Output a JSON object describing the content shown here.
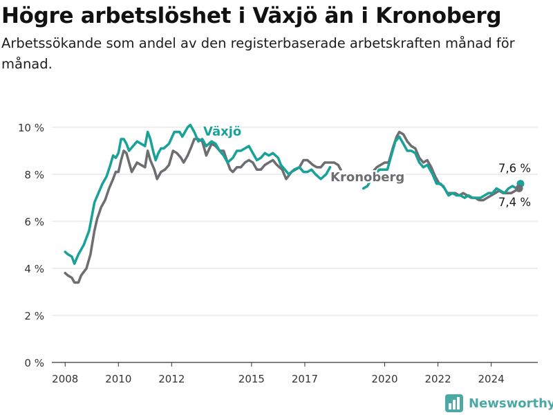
{
  "title": "Högre arbetslöshet i Växjö än i Kronoberg",
  "subtitle": "Arbetssökande som andel av den registerbaserade arbetskraften månad för månad.",
  "brand": {
    "name": "Newsworthy",
    "logo_icon": "bar-chart-logo-icon"
  },
  "colors": {
    "vaxjo": "#1aa198",
    "kronoberg": "#6d6e71",
    "grid": "#dcdcdc",
    "axis": "#333333"
  },
  "chart_data": {
    "type": "line",
    "xlim": [
      2007.5,
      2025.75
    ],
    "ylim": [
      0,
      10
    ],
    "x_ticks": [
      2008,
      2010,
      2012,
      2015,
      2017,
      2020,
      2022,
      2024
    ],
    "y_ticks": [
      0,
      2,
      4,
      6,
      8,
      10
    ],
    "y_tick_labels": [
      "0 %",
      "2 %",
      "4 %",
      "6 %",
      "8 %",
      "10 %"
    ],
    "grid": true,
    "legend": "direct labels",
    "series": [
      {
        "name": "Växjö",
        "key": "vaxjo",
        "end_label": "7,6 %",
        "points": [
          [
            2008.0,
            4.7
          ],
          [
            2008.1,
            4.6
          ],
          [
            2008.25,
            4.5
          ],
          [
            2008.35,
            4.2
          ],
          [
            2008.5,
            4.6
          ],
          [
            2008.7,
            5.0
          ],
          [
            2008.9,
            5.6
          ],
          [
            2009.0,
            6.2
          ],
          [
            2009.1,
            6.8
          ],
          [
            2009.25,
            7.2
          ],
          [
            2009.4,
            7.6
          ],
          [
            2009.55,
            7.9
          ],
          [
            2009.7,
            8.4
          ],
          [
            2009.8,
            8.8
          ],
          [
            2009.9,
            8.7
          ],
          [
            2010.0,
            8.9
          ],
          [
            2010.1,
            9.5
          ],
          [
            2010.2,
            9.5
          ],
          [
            2010.3,
            9.3
          ],
          [
            2010.4,
            9.0
          ],
          [
            2010.55,
            9.2
          ],
          [
            2010.7,
            9.4
          ],
          [
            2010.85,
            9.3
          ],
          [
            2011.0,
            9.2
          ],
          [
            2011.1,
            9.8
          ],
          [
            2011.2,
            9.5
          ],
          [
            2011.3,
            9.0
          ],
          [
            2011.4,
            8.6
          ],
          [
            2011.5,
            8.9
          ],
          [
            2011.6,
            9.1
          ],
          [
            2011.7,
            9.1
          ],
          [
            2011.9,
            9.3
          ],
          [
            2012.1,
            9.8
          ],
          [
            2012.3,
            9.8
          ],
          [
            2012.4,
            9.6
          ],
          [
            2012.5,
            9.8
          ],
          [
            2012.6,
            10.0
          ],
          [
            2012.7,
            10.1
          ],
          [
            2012.85,
            9.8
          ],
          [
            2013.0,
            9.4
          ],
          [
            2013.15,
            9.5
          ],
          [
            2013.3,
            9.2
          ],
          [
            2013.5,
            9.4
          ],
          [
            2013.65,
            9.3
          ],
          [
            2013.8,
            9.0
          ],
          [
            2013.95,
            8.8
          ],
          [
            2014.1,
            8.5
          ],
          [
            2014.3,
            8.7
          ],
          [
            2014.45,
            9.0
          ],
          [
            2014.6,
            9.0
          ],
          [
            2014.75,
            9.1
          ],
          [
            2014.9,
            9.2
          ],
          [
            2015.05,
            8.9
          ],
          [
            2015.2,
            8.6
          ],
          [
            2015.35,
            8.7
          ],
          [
            2015.5,
            8.9
          ],
          [
            2015.65,
            8.8
          ],
          [
            2015.8,
            8.9
          ],
          [
            2016.0,
            8.7
          ],
          [
            2016.1,
            8.4
          ],
          [
            2016.25,
            8.2
          ],
          [
            2016.4,
            8.0
          ],
          [
            2016.6,
            8.2
          ],
          [
            2016.8,
            8.3
          ],
          [
            2016.95,
            8.1
          ],
          [
            2017.1,
            8.1
          ],
          [
            2017.25,
            8.2
          ],
          [
            2017.4,
            8.0
          ],
          [
            2017.6,
            7.8
          ],
          [
            2017.8,
            8.0
          ],
          [
            2017.95,
            8.3
          ]
        ],
        "points_b": [
          [
            2019.2,
            7.4
          ],
          [
            2019.35,
            7.5
          ],
          [
            2019.5,
            7.8
          ],
          [
            2019.65,
            8.0
          ],
          [
            2019.8,
            8.2
          ],
          [
            2019.95,
            8.2
          ],
          [
            2020.1,
            8.2
          ],
          [
            2020.25,
            8.8
          ],
          [
            2020.4,
            9.4
          ],
          [
            2020.55,
            9.6
          ],
          [
            2020.7,
            9.3
          ],
          [
            2020.85,
            9.0
          ],
          [
            2021.0,
            9.0
          ],
          [
            2021.15,
            8.9
          ],
          [
            2021.3,
            8.5
          ],
          [
            2021.45,
            8.3
          ],
          [
            2021.6,
            8.4
          ],
          [
            2021.8,
            8.0
          ],
          [
            2021.95,
            7.6
          ],
          [
            2022.1,
            7.6
          ],
          [
            2022.25,
            7.4
          ],
          [
            2022.4,
            7.1
          ],
          [
            2022.55,
            7.2
          ],
          [
            2022.7,
            7.1
          ],
          [
            2022.85,
            7.1
          ],
          [
            2023.0,
            7.0
          ],
          [
            2023.15,
            7.1
          ],
          [
            2023.3,
            7.0
          ],
          [
            2023.45,
            7.0
          ],
          [
            2023.6,
            7.0
          ],
          [
            2023.75,
            7.1
          ],
          [
            2023.9,
            7.2
          ],
          [
            2024.05,
            7.2
          ],
          [
            2024.2,
            7.4
          ],
          [
            2024.35,
            7.3
          ],
          [
            2024.5,
            7.2
          ],
          [
            2024.65,
            7.4
          ],
          [
            2024.8,
            7.5
          ],
          [
            2024.95,
            7.4
          ],
          [
            2025.1,
            7.6
          ]
        ]
      },
      {
        "name": "Kronoberg",
        "key": "kronoberg",
        "end_label": "7,4 %",
        "points": [
          [
            2008.0,
            3.8
          ],
          [
            2008.1,
            3.7
          ],
          [
            2008.25,
            3.6
          ],
          [
            2008.35,
            3.4
          ],
          [
            2008.5,
            3.4
          ],
          [
            2008.6,
            3.7
          ],
          [
            2008.8,
            4.0
          ],
          [
            2008.95,
            4.6
          ],
          [
            2009.1,
            5.6
          ],
          [
            2009.2,
            6.1
          ],
          [
            2009.35,
            6.6
          ],
          [
            2009.5,
            6.9
          ],
          [
            2009.65,
            7.4
          ],
          [
            2009.8,
            7.8
          ],
          [
            2009.9,
            8.1
          ],
          [
            2010.0,
            8.1
          ],
          [
            2010.1,
            8.6
          ],
          [
            2010.2,
            9.0
          ],
          [
            2010.3,
            8.9
          ],
          [
            2010.4,
            8.5
          ],
          [
            2010.5,
            8.1
          ],
          [
            2010.6,
            8.3
          ],
          [
            2010.7,
            8.5
          ],
          [
            2010.85,
            8.4
          ],
          [
            2011.0,
            8.3
          ],
          [
            2011.1,
            9.0
          ],
          [
            2011.2,
            8.6
          ],
          [
            2011.35,
            8.2
          ],
          [
            2011.45,
            7.8
          ],
          [
            2011.6,
            8.1
          ],
          [
            2011.75,
            8.2
          ],
          [
            2011.9,
            8.4
          ],
          [
            2012.05,
            9.0
          ],
          [
            2012.2,
            8.9
          ],
          [
            2012.35,
            8.7
          ],
          [
            2012.45,
            8.5
          ],
          [
            2012.6,
            8.8
          ],
          [
            2012.75,
            9.2
          ],
          [
            2012.85,
            9.5
          ],
          [
            2013.0,
            9.5
          ],
          [
            2013.15,
            9.4
          ],
          [
            2013.3,
            8.8
          ],
          [
            2013.5,
            9.3
          ],
          [
            2013.65,
            9.2
          ],
          [
            2013.8,
            9.0
          ],
          [
            2013.95,
            9.0
          ],
          [
            2014.1,
            8.5
          ],
          [
            2014.2,
            8.2
          ],
          [
            2014.3,
            8.1
          ],
          [
            2014.45,
            8.3
          ],
          [
            2014.6,
            8.3
          ],
          [
            2014.75,
            8.5
          ],
          [
            2014.9,
            8.6
          ],
          [
            2015.05,
            8.5
          ],
          [
            2015.2,
            8.2
          ],
          [
            2015.35,
            8.2
          ],
          [
            2015.5,
            8.4
          ],
          [
            2015.65,
            8.5
          ],
          [
            2015.8,
            8.6
          ],
          [
            2015.95,
            8.4
          ],
          [
            2016.15,
            8.2
          ],
          [
            2016.3,
            7.8
          ],
          [
            2016.5,
            8.1
          ],
          [
            2016.65,
            8.2
          ],
          [
            2016.8,
            8.3
          ],
          [
            2016.95,
            8.6
          ],
          [
            2017.1,
            8.6
          ],
          [
            2017.3,
            8.4
          ],
          [
            2017.45,
            8.3
          ],
          [
            2017.6,
            8.3
          ],
          [
            2017.75,
            8.5
          ],
          [
            2017.9,
            8.5
          ],
          [
            2018.1,
            8.5
          ],
          [
            2018.25,
            8.4
          ],
          [
            2018.35,
            8.2
          ]
        ],
        "points_b": [
          [
            2019.55,
            8.1
          ],
          [
            2019.7,
            8.3
          ],
          [
            2019.85,
            8.4
          ],
          [
            2020.0,
            8.5
          ],
          [
            2020.15,
            8.5
          ],
          [
            2020.3,
            9.1
          ],
          [
            2020.45,
            9.6
          ],
          [
            2020.55,
            9.8
          ],
          [
            2020.7,
            9.7
          ],
          [
            2020.85,
            9.4
          ],
          [
            2021.0,
            9.2
          ],
          [
            2021.15,
            9.1
          ],
          [
            2021.3,
            8.7
          ],
          [
            2021.45,
            8.5
          ],
          [
            2021.6,
            8.6
          ],
          [
            2021.75,
            8.3
          ],
          [
            2021.9,
            7.9
          ],
          [
            2022.05,
            7.6
          ],
          [
            2022.2,
            7.5
          ],
          [
            2022.35,
            7.2
          ],
          [
            2022.5,
            7.2
          ],
          [
            2022.65,
            7.2
          ],
          [
            2022.8,
            7.1
          ],
          [
            2022.95,
            7.2
          ],
          [
            2023.1,
            7.1
          ],
          [
            2023.25,
            7.0
          ],
          [
            2023.4,
            7.0
          ],
          [
            2023.55,
            6.9
          ],
          [
            2023.7,
            6.9
          ],
          [
            2023.85,
            7.0
          ],
          [
            2024.0,
            7.1
          ],
          [
            2024.15,
            7.2
          ],
          [
            2024.3,
            7.3
          ],
          [
            2024.45,
            7.2
          ],
          [
            2024.6,
            7.2
          ],
          [
            2024.75,
            7.2
          ],
          [
            2024.9,
            7.3
          ],
          [
            2025.05,
            7.4
          ]
        ]
      }
    ]
  }
}
